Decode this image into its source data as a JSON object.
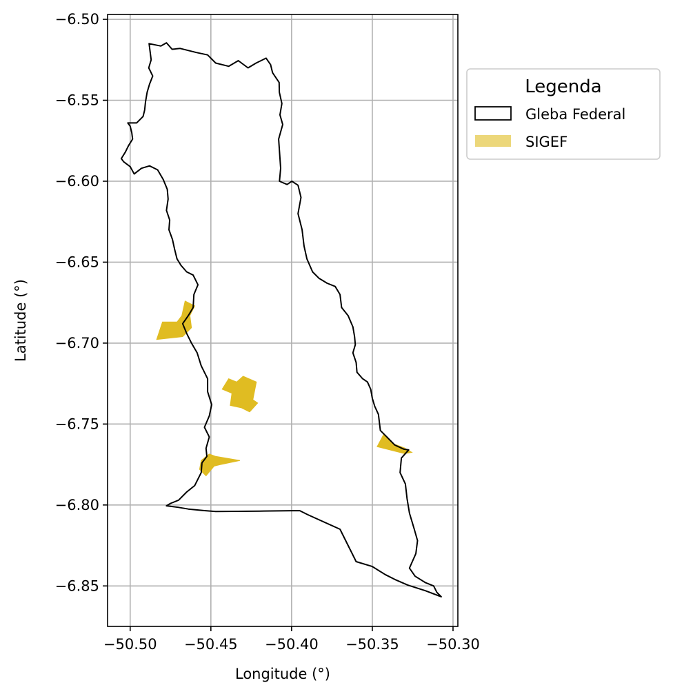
{
  "chart_data": {
    "type": "map",
    "xlabel": "Longitude (°)",
    "ylabel": "Latitude (°)",
    "xlim": [
      -50.514,
      -50.297
    ],
    "ylim": [
      -6.875,
      -6.497
    ],
    "x_ticks": [
      -50.5,
      -50.45,
      -50.4,
      -50.35,
      -50.3
    ],
    "x_tick_labels": [
      "−50.50",
      "−50.45",
      "−50.40",
      "−50.35",
      "−50.30"
    ],
    "y_ticks": [
      -6.5,
      -6.55,
      -6.6,
      -6.65,
      -6.7,
      -6.75,
      -6.8,
      -6.85
    ],
    "y_tick_labels": [
      "−6.50",
      "−6.55",
      "−6.60",
      "−6.65",
      "−6.70",
      "−6.75",
      "−6.80",
      "−6.85"
    ],
    "grid": true,
    "legend": {
      "title": "Legenda",
      "placement": "upper right, outside plot",
      "entries": [
        {
          "label": "Gleba Federal",
          "style": "outline",
          "color": "#000000"
        },
        {
          "label": "SIGEF",
          "style": "fill",
          "color": "#e0bc22"
        }
      ]
    },
    "layers": [
      {
        "name": "Gleba Federal",
        "type": "polygon-outline",
        "color": "#000000",
        "coordinates": [
          [
            -50.4883,
            -6.515
          ],
          [
            -50.481,
            -6.5165
          ],
          [
            -50.4775,
            -6.5145
          ],
          [
            -50.474,
            -6.5185
          ],
          [
            -50.469,
            -6.518
          ],
          [
            -50.459,
            -6.5205
          ],
          [
            -50.452,
            -6.522
          ],
          [
            -50.447,
            -6.527
          ],
          [
            -50.439,
            -6.529
          ],
          [
            -50.433,
            -6.5255
          ],
          [
            -50.427,
            -6.53
          ],
          [
            -50.422,
            -6.527
          ],
          [
            -50.4158,
            -6.524
          ],
          [
            -50.413,
            -6.528
          ],
          [
            -50.4118,
            -6.533
          ],
          [
            -50.4077,
            -6.539
          ],
          [
            -50.4076,
            -6.545
          ],
          [
            -50.406,
            -6.552
          ],
          [
            -50.4072,
            -6.559
          ],
          [
            -50.4055,
            -6.565
          ],
          [
            -50.408,
            -6.574
          ],
          [
            -50.4068,
            -6.592
          ],
          [
            -50.4075,
            -6.6
          ],
          [
            -50.4028,
            -6.602
          ],
          [
            -50.3998,
            -6.6
          ],
          [
            -50.396,
            -6.6025
          ],
          [
            -50.3942,
            -6.61
          ],
          [
            -50.396,
            -6.62
          ],
          [
            -50.3935,
            -6.63
          ],
          [
            -50.3923,
            -6.64
          ],
          [
            -50.3905,
            -6.648
          ],
          [
            -50.387,
            -6.656
          ],
          [
            -50.383,
            -6.66
          ],
          [
            -50.378,
            -6.663
          ],
          [
            -50.373,
            -6.665
          ],
          [
            -50.37,
            -6.67
          ],
          [
            -50.369,
            -6.678
          ],
          [
            -50.365,
            -6.683
          ],
          [
            -50.362,
            -6.69
          ],
          [
            -50.361,
            -6.696
          ],
          [
            -50.3605,
            -6.701
          ],
          [
            -50.362,
            -6.706
          ],
          [
            -50.36,
            -6.712
          ],
          [
            -50.3595,
            -6.718
          ],
          [
            -50.356,
            -6.722
          ],
          [
            -50.353,
            -6.724
          ],
          [
            -50.351,
            -6.7285
          ],
          [
            -50.35,
            -6.734
          ],
          [
            -50.3485,
            -6.739
          ],
          [
            -50.3462,
            -6.744
          ],
          [
            -50.345,
            -6.754
          ],
          [
            -50.341,
            -6.758
          ],
          [
            -50.336,
            -6.763
          ],
          [
            -50.3305,
            -6.7655
          ],
          [
            -50.3275,
            -6.766
          ],
          [
            -50.332,
            -6.771
          ],
          [
            -50.3328,
            -6.78
          ],
          [
            -50.3295,
            -6.787
          ],
          [
            -50.3285,
            -6.796
          ],
          [
            -50.327,
            -6.805
          ],
          [
            -50.324,
            -6.815
          ],
          [
            -50.322,
            -6.822
          ],
          [
            -50.323,
            -6.83
          ],
          [
            -50.327,
            -6.839
          ],
          [
            -50.3235,
            -6.844
          ],
          [
            -50.317,
            -6.848
          ],
          [
            -50.312,
            -6.85
          ],
          [
            -50.31,
            -6.854
          ],
          [
            -50.3073,
            -6.8567
          ],
          [
            -50.317,
            -6.853
          ],
          [
            -50.328,
            -6.8495
          ],
          [
            -50.336,
            -6.846
          ],
          [
            -50.342,
            -6.843
          ],
          [
            -50.35,
            -6.838
          ],
          [
            -50.36,
            -6.835
          ],
          [
            -50.365,
            -6.825
          ],
          [
            -50.37,
            -6.815
          ],
          [
            -50.39,
            -6.806
          ],
          [
            -50.395,
            -6.8035
          ],
          [
            -50.42,
            -6.8038
          ],
          [
            -50.447,
            -6.804
          ],
          [
            -50.454,
            -6.8035
          ],
          [
            -50.464,
            -6.8025
          ],
          [
            -50.47,
            -6.8015
          ],
          [
            -50.4775,
            -6.8005
          ],
          [
            -50.475,
            -6.799
          ],
          [
            -50.47,
            -6.797
          ],
          [
            -50.465,
            -6.792
          ],
          [
            -50.46,
            -6.788
          ],
          [
            -50.456,
            -6.78
          ],
          [
            -50.4555,
            -6.774
          ],
          [
            -50.4525,
            -6.77
          ],
          [
            -50.453,
            -6.765
          ],
          [
            -50.451,
            -6.758
          ],
          [
            -50.454,
            -6.752
          ],
          [
            -50.451,
            -6.745
          ],
          [
            -50.4495,
            -6.738
          ],
          [
            -50.452,
            -6.73
          ],
          [
            -50.452,
            -6.722
          ],
          [
            -50.456,
            -6.714
          ],
          [
            -50.4585,
            -6.706
          ],
          [
            -50.462,
            -6.7
          ],
          [
            -50.465,
            -6.694
          ],
          [
            -50.4675,
            -6.688
          ],
          [
            -50.464,
            -6.683
          ],
          [
            -50.461,
            -6.678
          ],
          [
            -50.4605,
            -6.67
          ],
          [
            -50.458,
            -6.664
          ],
          [
            -50.461,
            -6.658
          ],
          [
            -50.465,
            -6.656
          ],
          [
            -50.4685,
            -6.652
          ],
          [
            -50.471,
            -6.648
          ],
          [
            -50.4725,
            -6.642
          ],
          [
            -50.4738,
            -6.636
          ],
          [
            -50.476,
            -6.63
          ],
          [
            -50.4755,
            -6.624
          ],
          [
            -50.4775,
            -6.618
          ],
          [
            -50.4765,
            -6.611
          ],
          [
            -50.477,
            -6.605
          ],
          [
            -50.4795,
            -6.599
          ],
          [
            -50.483,
            -6.593
          ],
          [
            -50.488,
            -6.5905
          ],
          [
            -50.493,
            -6.592
          ],
          [
            -50.4975,
            -6.5955
          ],
          [
            -50.5,
            -6.591
          ],
          [
            -50.504,
            -6.588
          ],
          [
            -50.5055,
            -6.586
          ],
          [
            -50.503,
            -6.582
          ],
          [
            -50.501,
            -6.578
          ],
          [
            -50.4985,
            -6.574
          ],
          [
            -50.499,
            -6.57
          ],
          [
            -50.5,
            -6.566
          ],
          [
            -50.5015,
            -6.564
          ],
          [
            -50.496,
            -6.564
          ],
          [
            -50.492,
            -6.56
          ],
          [
            -50.491,
            -6.556
          ],
          [
            -50.4905,
            -6.551
          ],
          [
            -50.4895,
            -6.545
          ],
          [
            -50.488,
            -6.54
          ],
          [
            -50.486,
            -6.535
          ],
          [
            -50.4885,
            -6.53
          ],
          [
            -50.487,
            -6.525
          ],
          [
            -50.4883,
            -6.515
          ]
        ]
      },
      {
        "name": "SIGEF",
        "type": "polygons-filled",
        "color": "#e0bc22",
        "polygons": [
          [
            [
              -50.4836,
              -6.6978
            ],
            [
              -50.48,
              -6.687
            ],
            [
              -50.471,
              -6.687
            ],
            [
              -50.468,
              -6.683
            ],
            [
              -50.466,
              -6.674
            ],
            [
              -50.46,
              -6.677
            ],
            [
              -50.463,
              -6.683
            ],
            [
              -50.462,
              -6.6905
            ],
            [
              -50.4675,
              -6.696
            ]
          ],
          [
            [
              -50.439,
              -6.722
            ],
            [
              -50.434,
              -6.724
            ],
            [
              -50.43,
              -6.7205
            ],
            [
              -50.4218,
              -6.724
            ],
            [
              -50.424,
              -6.735
            ],
            [
              -50.421,
              -6.737
            ],
            [
              -50.426,
              -6.7425
            ],
            [
              -50.431,
              -6.74
            ],
            [
              -50.438,
              -6.7385
            ],
            [
              -50.437,
              -6.731
            ],
            [
              -50.443,
              -6.7285
            ]
          ],
          [
            [
              -50.456,
              -6.7725
            ],
            [
              -50.451,
              -6.7685
            ],
            [
              -50.447,
              -6.77
            ],
            [
              -50.432,
              -6.7725
            ],
            [
              -50.444,
              -6.775
            ],
            [
              -50.448,
              -6.776
            ],
            [
              -50.453,
              -6.782
            ],
            [
              -50.457,
              -6.778
            ]
          ],
          [
            [
              -50.347,
              -6.764
            ],
            [
              -50.343,
              -6.7565
            ],
            [
              -50.3375,
              -6.762
            ],
            [
              -50.33,
              -6.7648
            ],
            [
              -50.3255,
              -6.7675
            ],
            [
              -50.33,
              -6.7683
            ]
          ]
        ]
      }
    ]
  }
}
